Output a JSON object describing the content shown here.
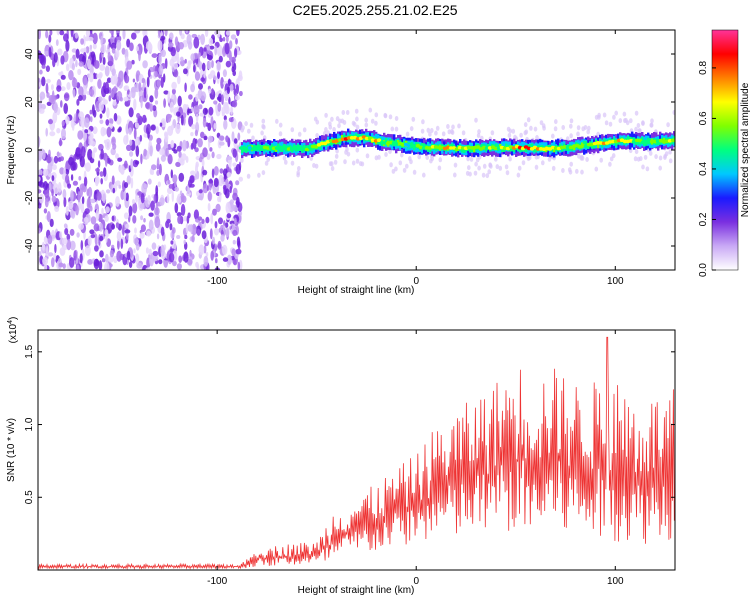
{
  "page": {
    "title": "C2E5.2025.255.21.02.E25"
  },
  "chart_data": [
    {
      "type": "heatmap",
      "name": "spectrogram",
      "xlabel": "Height of straight line (km)",
      "ylabel": "Frequency (Hz)",
      "xlim": [
        -190,
        130
      ],
      "ylim": [
        -50,
        50
      ],
      "x_ticks": [
        -100,
        0,
        100
      ],
      "x_tick_labels": [
        "-100",
        "0",
        "100"
      ],
      "y_ticks": [
        -40,
        -20,
        0,
        20,
        40
      ],
      "y_tick_labels": [
        "-40",
        "-20",
        "0",
        "20",
        "40"
      ],
      "noise_region_x": [
        -190,
        -88
      ],
      "signal_start_x": -88,
      "signal_trace": {
        "x": [
          -88,
          -70,
          -55,
          -45,
          -35,
          -25,
          -15,
          -5,
          5,
          15,
          25,
          35,
          45,
          55,
          65,
          75,
          85,
          95,
          105,
          115,
          130
        ],
        "freq_hz": [
          0.5,
          1.0,
          0.5,
          3.0,
          5.0,
          5.0,
          3.0,
          2.0,
          1.0,
          1.0,
          0.5,
          1.0,
          1.0,
          1.0,
          0.5,
          1.0,
          2.0,
          3.0,
          4.0,
          3.5,
          4.0
        ],
        "amplitude": [
          0.5,
          0.55,
          0.6,
          0.7,
          0.85,
          0.8,
          0.6,
          0.55,
          0.6,
          0.8,
          0.7,
          0.6,
          0.65,
          0.85,
          0.7,
          0.6,
          0.6,
          0.8,
          0.7,
          0.6,
          0.6
        ]
      },
      "colorbar": {
        "label": "Normalized spectral amplitude",
        "range": [
          0,
          0.95
        ],
        "ticks": [
          0.0,
          0.2,
          0.4,
          0.6,
          0.8
        ],
        "tick_labels": [
          "0.0",
          "0.2",
          "0.4",
          "0.6",
          "0.8"
        ],
        "colors": [
          "#ffffff",
          "#c9a9f5",
          "#7a2fe0",
          "#1a1aff",
          "#00c8ff",
          "#00ff80",
          "#80ff00",
          "#ffff00",
          "#ff8000",
          "#ff0000",
          "#ff3399"
        ]
      }
    },
    {
      "type": "line",
      "name": "snr",
      "xlabel": "Height of straight line (km)",
      "ylabel": "SNR (10 * v/v)",
      "multiplier_label": "(x10",
      "multiplier_exp": "4",
      "multiplier_close": ")",
      "xlim": [
        -190,
        130
      ],
      "ylim": [
        0,
        1.65
      ],
      "x_ticks": [
        -100,
        0,
        100
      ],
      "x_tick_labels": [
        "-100",
        "0",
        "100"
      ],
      "y_ticks": [
        0.5,
        1.0,
        1.5
      ],
      "y_tick_labels": [
        "0.5",
        "1.0",
        "1.5"
      ],
      "line_color": "#ee3333",
      "envelope": {
        "x": [
          -190,
          -88,
          -80,
          -65,
          -50,
          -40,
          -30,
          -20,
          -10,
          0,
          10,
          20,
          30,
          40,
          50,
          60,
          70,
          80,
          90,
          100,
          110,
          120,
          130
        ],
        "low": [
          0.01,
          0.01,
          0.02,
          0.03,
          0.03,
          0.05,
          0.1,
          0.12,
          0.15,
          0.18,
          0.2,
          0.2,
          0.22,
          0.25,
          0.25,
          0.2,
          0.25,
          0.2,
          0.2,
          0.2,
          0.15,
          0.2,
          0.2
        ],
        "high": [
          0.04,
          0.04,
          0.15,
          0.18,
          0.2,
          0.45,
          0.5,
          0.6,
          0.7,
          0.8,
          1.0,
          1.1,
          1.2,
          1.3,
          1.45,
          1.35,
          1.4,
          1.3,
          1.3,
          1.35,
          1.2,
          1.2,
          1.25
        ],
        "peak_x": 96,
        "peak_y": 1.6
      }
    }
  ]
}
